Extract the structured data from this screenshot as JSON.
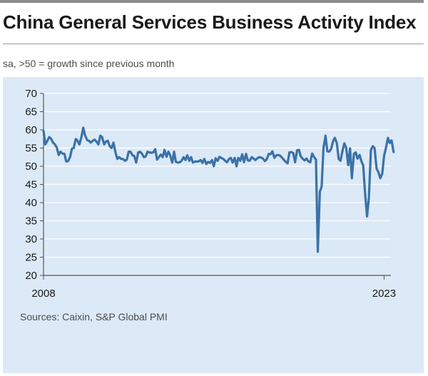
{
  "title": "China General Services Business Activity Index",
  "subtitle": "sa, >50 = growth since previous month",
  "source": "Sources: Caixin, S&P Global PMI",
  "colors": {
    "panel": "#dce9f6",
    "line": "#3a72a8",
    "grid": "#ffffff",
    "axis": "#555555"
  },
  "chart_data": {
    "type": "line",
    "title": "China General Services Business Activity Index",
    "subtitle": "sa, >50 = growth since previous month",
    "xlabel": "",
    "ylabel": "",
    "xlim": [
      2008.0,
      2023.3
    ],
    "ylim": [
      20,
      70
    ],
    "yticks": [
      20,
      25,
      30,
      35,
      40,
      45,
      50,
      55,
      60,
      65,
      70
    ],
    "xtick_labels": [
      {
        "x": 2008.0,
        "label": "2008"
      },
      {
        "x": 2023.0,
        "label": "2023"
      }
    ],
    "grid": true,
    "series": [
      {
        "name": "Services Business Activity Index",
        "x": [
          2008.0,
          2008.08,
          2008.17,
          2008.25,
          2008.33,
          2008.42,
          2008.5,
          2008.58,
          2008.67,
          2008.75,
          2008.83,
          2008.92,
          2009.0,
          2009.08,
          2009.17,
          2009.25,
          2009.33,
          2009.42,
          2009.5,
          2009.58,
          2009.67,
          2009.75,
          2009.83,
          2009.92,
          2010.0,
          2010.08,
          2010.17,
          2010.25,
          2010.33,
          2010.42,
          2010.5,
          2010.58,
          2010.67,
          2010.75,
          2010.83,
          2010.92,
          2011.0,
          2011.08,
          2011.17,
          2011.25,
          2011.33,
          2011.42,
          2011.5,
          2011.58,
          2011.67,
          2011.75,
          2011.83,
          2011.92,
          2012.0,
          2012.08,
          2012.17,
          2012.25,
          2012.33,
          2012.42,
          2012.5,
          2012.58,
          2012.67,
          2012.75,
          2012.83,
          2012.92,
          2013.0,
          2013.08,
          2013.17,
          2013.25,
          2013.33,
          2013.42,
          2013.5,
          2013.58,
          2013.67,
          2013.75,
          2013.83,
          2013.92,
          2014.0,
          2014.08,
          2014.17,
          2014.25,
          2014.33,
          2014.42,
          2014.5,
          2014.58,
          2014.67,
          2014.75,
          2014.83,
          2014.92,
          2015.0,
          2015.08,
          2015.17,
          2015.25,
          2015.33,
          2015.42,
          2015.5,
          2015.58,
          2015.67,
          2015.75,
          2015.83,
          2015.92,
          2016.0,
          2016.08,
          2016.17,
          2016.25,
          2016.33,
          2016.42,
          2016.5,
          2016.58,
          2016.67,
          2016.75,
          2016.83,
          2016.92,
          2017.0,
          2017.08,
          2017.17,
          2017.25,
          2017.33,
          2017.42,
          2017.5,
          2017.58,
          2017.67,
          2017.75,
          2017.83,
          2017.92,
          2018.0,
          2018.08,
          2018.17,
          2018.25,
          2018.33,
          2018.42,
          2018.5,
          2018.58,
          2018.67,
          2018.75,
          2018.83,
          2018.92,
          2019.0,
          2019.08,
          2019.17,
          2019.25,
          2019.33,
          2019.42,
          2019.5,
          2019.58,
          2019.67,
          2019.75,
          2019.83,
          2019.92,
          2020.0,
          2020.08,
          2020.17,
          2020.25,
          2020.33,
          2020.42,
          2020.5,
          2020.58,
          2020.67,
          2020.75,
          2020.83,
          2020.92,
          2021.0,
          2021.08,
          2021.17,
          2021.25,
          2021.33,
          2021.42,
          2021.5,
          2021.58,
          2021.67,
          2021.75,
          2021.83,
          2021.92,
          2022.0,
          2022.08,
          2022.17,
          2022.25,
          2022.33,
          2022.42,
          2022.5,
          2022.58,
          2022.67,
          2022.75,
          2022.83,
          2022.92,
          2023.0,
          2023.08,
          2023.17,
          2023.25,
          2023.33,
          2023.42
        ],
        "values": [
          59.7,
          56.0,
          57.0,
          58.0,
          57.6,
          56.5,
          56.0,
          55.2,
          53.1,
          54.0,
          53.5,
          53.4,
          51.3,
          51.4,
          52.5,
          54.8,
          55.0,
          57.5,
          57.0,
          56.0,
          58.0,
          60.6,
          58.5,
          57.2,
          57.0,
          56.5,
          57.0,
          57.3,
          56.8,
          56.0,
          58.4,
          58.0,
          56.0,
          56.8,
          57.0,
          55.5,
          55.0,
          56.5,
          53.8,
          52.0,
          52.5,
          52.0,
          52.0,
          51.5,
          51.8,
          54.0,
          54.0,
          53.0,
          52.8,
          51.0,
          53.8,
          54.0,
          53.5,
          52.5,
          52.7,
          54.0,
          53.8,
          53.7,
          53.8,
          54.7,
          51.8,
          52.5,
          53.2,
          52.5,
          54.5,
          52.6,
          54.0,
          53.0,
          51.0,
          54.0,
          51.2,
          51.0,
          51.1,
          51.5,
          52.5,
          51.7,
          53.0,
          51.5,
          52.5,
          51.0,
          51.3,
          51.3,
          51.3,
          51.7,
          50.9,
          52.0,
          50.6,
          51.2,
          50.9,
          51.7,
          50.0,
          52.2,
          51.5,
          52.6,
          52.3,
          52.0,
          51.5,
          51.1,
          52.0,
          52.3,
          51.0,
          52.3,
          50.0,
          52.3,
          51.5,
          53.3,
          51.1,
          53.4,
          51.6,
          51.5,
          52.5,
          52.1,
          51.7,
          52.2,
          52.5,
          52.4,
          52.1,
          51.4,
          51.9,
          53.4,
          53.3,
          54.1,
          52.3,
          53.0,
          53.1,
          52.9,
          52.4,
          51.8,
          51.2,
          50.8,
          53.8,
          53.9,
          53.6,
          51.1,
          54.4,
          54.5,
          52.7,
          52.0,
          51.6,
          52.1,
          51.3,
          51.1,
          53.5,
          52.5,
          51.8,
          26.5,
          43.0,
          44.4,
          55.0,
          58.4,
          54.1,
          54.0,
          54.8,
          56.8,
          57.8,
          56.3,
          52.0,
          51.5,
          54.3,
          56.3,
          55.1,
          50.3,
          54.9,
          46.7,
          53.4,
          53.8,
          52.1,
          53.1,
          51.4,
          50.2,
          42.0,
          36.2,
          41.4,
          54.5,
          55.5,
          55.0,
          49.3,
          48.4,
          46.7,
          48.0,
          52.9,
          55.0,
          57.8,
          56.4,
          57.1,
          53.9
        ]
      }
    ]
  }
}
